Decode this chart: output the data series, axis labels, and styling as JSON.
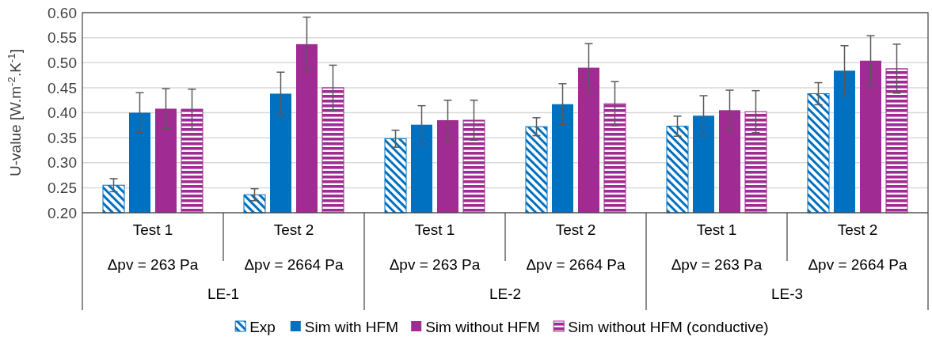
{
  "chart_data": {
    "type": "bar",
    "ylabel": "U-value [W.m$^{-2}$.K$^{-1}$]",
    "categories": [
      "Test 1\nΔpv = 263 Pa",
      "Test 2\nΔpv = 2664 Pa",
      "Test 1\nΔpv = 263 Pa",
      "Test 2\nΔpv = 2664 Pa",
      "Test 1\nΔpv = 263 Pa",
      "Test 2\nΔpv = 2664 Pa"
    ],
    "annotations": [
      "LE-1",
      "LE-2",
      "LE-3"
    ],
    "series": [
      {
        "name": "Exp",
        "color": "#0070c0",
        "values": [
          0.255,
          0.236,
          0.348,
          0.372,
          0.373,
          0.438
        ],
        "errors": [
          0.013,
          0.012,
          0.017,
          0.018,
          0.02,
          0.022
        ]
      },
      {
        "name": "Sim with HFM",
        "color": "#0070c0",
        "values": [
          0.4,
          0.438,
          0.376,
          0.417,
          0.394,
          0.484
        ],
        "errors": [
          0.04,
          0.043,
          0.038,
          0.041,
          0.04,
          0.05
        ]
      },
      {
        "name": "Sim without HFM",
        "color": "#a02b93",
        "values": [
          0.408,
          0.537,
          0.385,
          0.49,
          0.405,
          0.504
        ],
        "errors": [
          0.04,
          0.054,
          0.04,
          0.048,
          0.04,
          0.05
        ]
      },
      {
        "name": "Sim without HFM (conductive)",
        "color": "#a02b93",
        "values": [
          0.407,
          0.45,
          0.385,
          0.418,
          0.402,
          0.488
        ],
        "errors": [
          0.04,
          0.045,
          0.04,
          0.044,
          0.042,
          0.049
        ]
      }
    ],
    "ylim": [
      0.2,
      0.6
    ],
    "yticks": [
      {
        "value": 0.2,
        "label": "0.20"
      },
      0.25,
      {
        "value": 0.3,
        "label": "0.30"
      },
      0.35,
      {
        "value": 0.4,
        "label": "0.40"
      },
      0.45,
      {
        "value": 0.5,
        "label": "0.50"
      },
      0.55,
      {
        "value": 0.6,
        "label": "0.60"
      }
    ],
    "grid": "y",
    "legend": "bottom"
  }
}
